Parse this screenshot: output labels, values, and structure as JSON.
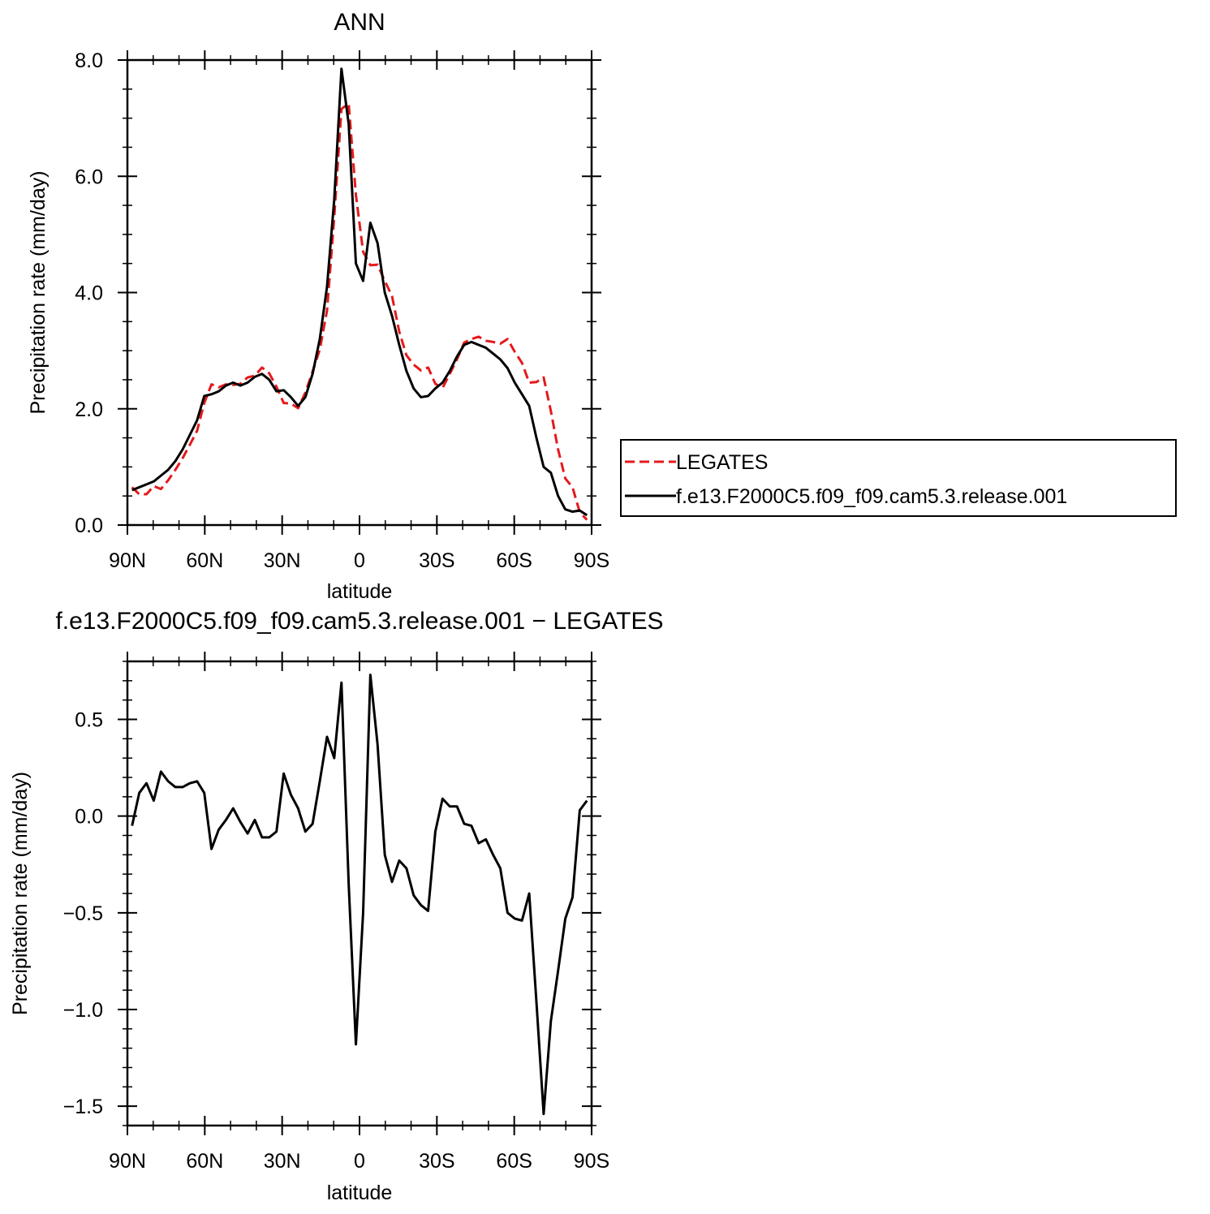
{
  "chart_data": [
    {
      "type": "line",
      "title": "ANN",
      "xlabel": "latitude",
      "ylabel": "Precipitation rate (mm/day)",
      "x": [
        88.2,
        85.4,
        82.6,
        79.8,
        77,
        74.2,
        71.4,
        68.6,
        65.8,
        63,
        60.2,
        57.4,
        54.6,
        51.8,
        49,
        46.2,
        43.4,
        40.6,
        37.8,
        35,
        32.2,
        29.4,
        26.6,
        23.8,
        21,
        18.2,
        15.4,
        12.6,
        9.8,
        7,
        4.2,
        1.4,
        -1.4,
        -4.2,
        -7,
        -9.8,
        -12.6,
        -15.4,
        -18.2,
        -21,
        -23.8,
        -26.6,
        -29.4,
        -32.2,
        -35,
        -37.8,
        -40.6,
        -43.4,
        -46.2,
        -49,
        -51.8,
        -54.6,
        -57.4,
        -60.2,
        -63,
        -65.8,
        -68.6,
        -71.4,
        -74.2,
        -77,
        -79.8,
        -82.6,
        -85.4,
        -88.2
      ],
      "xlim": [
        90,
        -90
      ],
      "xticks": [
        {
          "value": 90,
          "label": "90N"
        },
        {
          "value": 60,
          "label": "60N"
        },
        {
          "value": 30,
          "label": "30N"
        },
        0,
        {
          "value": -30,
          "label": "30S"
        },
        {
          "value": -60,
          "label": "60S"
        },
        {
          "value": -90,
          "label": "90S"
        }
      ],
      "ylim": [
        0,
        8
      ],
      "yticks": [
        {
          "value": 0,
          "label": "0.0"
        },
        {
          "value": 2,
          "label": "2.0"
        },
        {
          "value": 4,
          "label": "4.0"
        },
        {
          "value": 6,
          "label": "6.0"
        },
        {
          "value": 8,
          "label": "8.0"
        }
      ],
      "legend": "outside-right",
      "series": [
        {
          "name": "LEGATES",
          "color": "#e41a1c",
          "line_style": "dashed",
          "values": [
            0.65,
            0.53,
            0.53,
            0.67,
            0.62,
            0.77,
            0.95,
            1.15,
            1.38,
            1.62,
            2.1,
            2.42,
            2.37,
            2.42,
            2.41,
            2.43,
            2.54,
            2.57,
            2.71,
            2.61,
            2.38,
            2.1,
            2.09,
            2.01,
            2.28,
            2.64,
            3.02,
            3.69,
            5.3,
            7.16,
            7.25,
            5.68,
            4.7,
            4.47,
            4.48,
            4.2,
            3.94,
            3.33,
            2.92,
            2.76,
            2.66,
            2.71,
            2.43,
            2.36,
            2.6,
            2.85,
            3.14,
            3.2,
            3.24,
            3.17,
            3.15,
            3.12,
            3.2,
            2.98,
            2.79,
            2.45,
            2.46,
            2.54,
            1.96,
            1.3,
            0.8,
            0.65,
            0.22,
            0.09
          ]
        },
        {
          "name": "f.e13.F2000C5.f09_f09.cam5.3.release.001",
          "color": "#000000",
          "line_style": "solid",
          "values": [
            0.6,
            0.65,
            0.7,
            0.75,
            0.85,
            0.95,
            1.1,
            1.3,
            1.55,
            1.8,
            2.22,
            2.25,
            2.3,
            2.4,
            2.45,
            2.4,
            2.45,
            2.55,
            2.6,
            2.5,
            2.3,
            2.32,
            2.2,
            2.05,
            2.2,
            2.6,
            3.2,
            4.1,
            5.6,
            7.85,
            6.9,
            4.5,
            4.2,
            5.2,
            4.85,
            4.0,
            3.6,
            3.1,
            2.65,
            2.35,
            2.2,
            2.22,
            2.35,
            2.45,
            2.65,
            2.9,
            3.1,
            3.15,
            3.1,
            3.05,
            2.95,
            2.85,
            2.7,
            2.45,
            2.25,
            2.05,
            1.5,
            1.0,
            0.9,
            0.5,
            0.27,
            0.23,
            0.25,
            0.17
          ]
        }
      ]
    },
    {
      "type": "line",
      "title": "f.e13.F2000C5.f09_f09.cam5.3.release.001 − LEGATES",
      "xlabel": "latitude",
      "ylabel": "Precipitation rate (mm/day)",
      "x": [
        88.2,
        85.4,
        82.6,
        79.8,
        77,
        74.2,
        71.4,
        68.6,
        65.8,
        63,
        60.2,
        57.4,
        54.6,
        51.8,
        49,
        46.2,
        43.4,
        40.6,
        37.8,
        35,
        32.2,
        29.4,
        26.6,
        23.8,
        21,
        18.2,
        15.4,
        12.6,
        9.8,
        7,
        4.2,
        1.4,
        -1.4,
        -4.2,
        -7,
        -9.8,
        -12.6,
        -15.4,
        -18.2,
        -21,
        -23.8,
        -26.6,
        -29.4,
        -32.2,
        -35,
        -37.8,
        -40.6,
        -43.4,
        -46.2,
        -49,
        -51.8,
        -54.6,
        -57.4,
        -60.2,
        -63,
        -65.8,
        -68.6,
        -71.4,
        -74.2,
        -77,
        -79.8,
        -82.6,
        -85.4,
        -88.2
      ],
      "xlim": [
        90,
        -90
      ],
      "xticks": [
        {
          "value": 90,
          "label": "90N"
        },
        {
          "value": 60,
          "label": "60N"
        },
        {
          "value": 30,
          "label": "30N"
        },
        0,
        {
          "value": -30,
          "label": "30S"
        },
        {
          "value": -60,
          "label": "60S"
        },
        {
          "value": -90,
          "label": "90S"
        }
      ],
      "ylim": [
        -1.6,
        0.8
      ],
      "yticks": [
        0.5,
        {
          "value": 0,
          "label": "0.0"
        },
        {
          "value": -0.5,
          "label": "−0.5"
        },
        {
          "value": -1,
          "label": "−1.0"
        },
        {
          "value": -1.5,
          "label": "−1.5"
        }
      ],
      "series": [
        {
          "color": "#000000",
          "line_style": "solid",
          "values": [
            -0.05,
            0.12,
            0.17,
            0.08,
            0.23,
            0.18,
            0.15,
            0.15,
            0.17,
            0.18,
            0.12,
            -0.17,
            -0.07,
            -0.02,
            0.04,
            -0.03,
            -0.09,
            -0.02,
            -0.11,
            -0.11,
            -0.08,
            0.22,
            0.11,
            0.04,
            -0.08,
            -0.04,
            0.18,
            0.41,
            0.3,
            0.69,
            -0.35,
            -1.18,
            -0.5,
            0.73,
            0.37,
            -0.2,
            -0.34,
            -0.23,
            -0.27,
            -0.41,
            -0.46,
            -0.49,
            -0.08,
            0.09,
            0.05,
            0.05,
            -0.04,
            -0.05,
            -0.14,
            -0.12,
            -0.2,
            -0.27,
            -0.5,
            -0.53,
            -0.54,
            -0.4,
            -0.96,
            -1.54,
            -1.06,
            -0.8,
            -0.53,
            -0.42,
            0.03,
            0.08
          ]
        }
      ]
    }
  ]
}
